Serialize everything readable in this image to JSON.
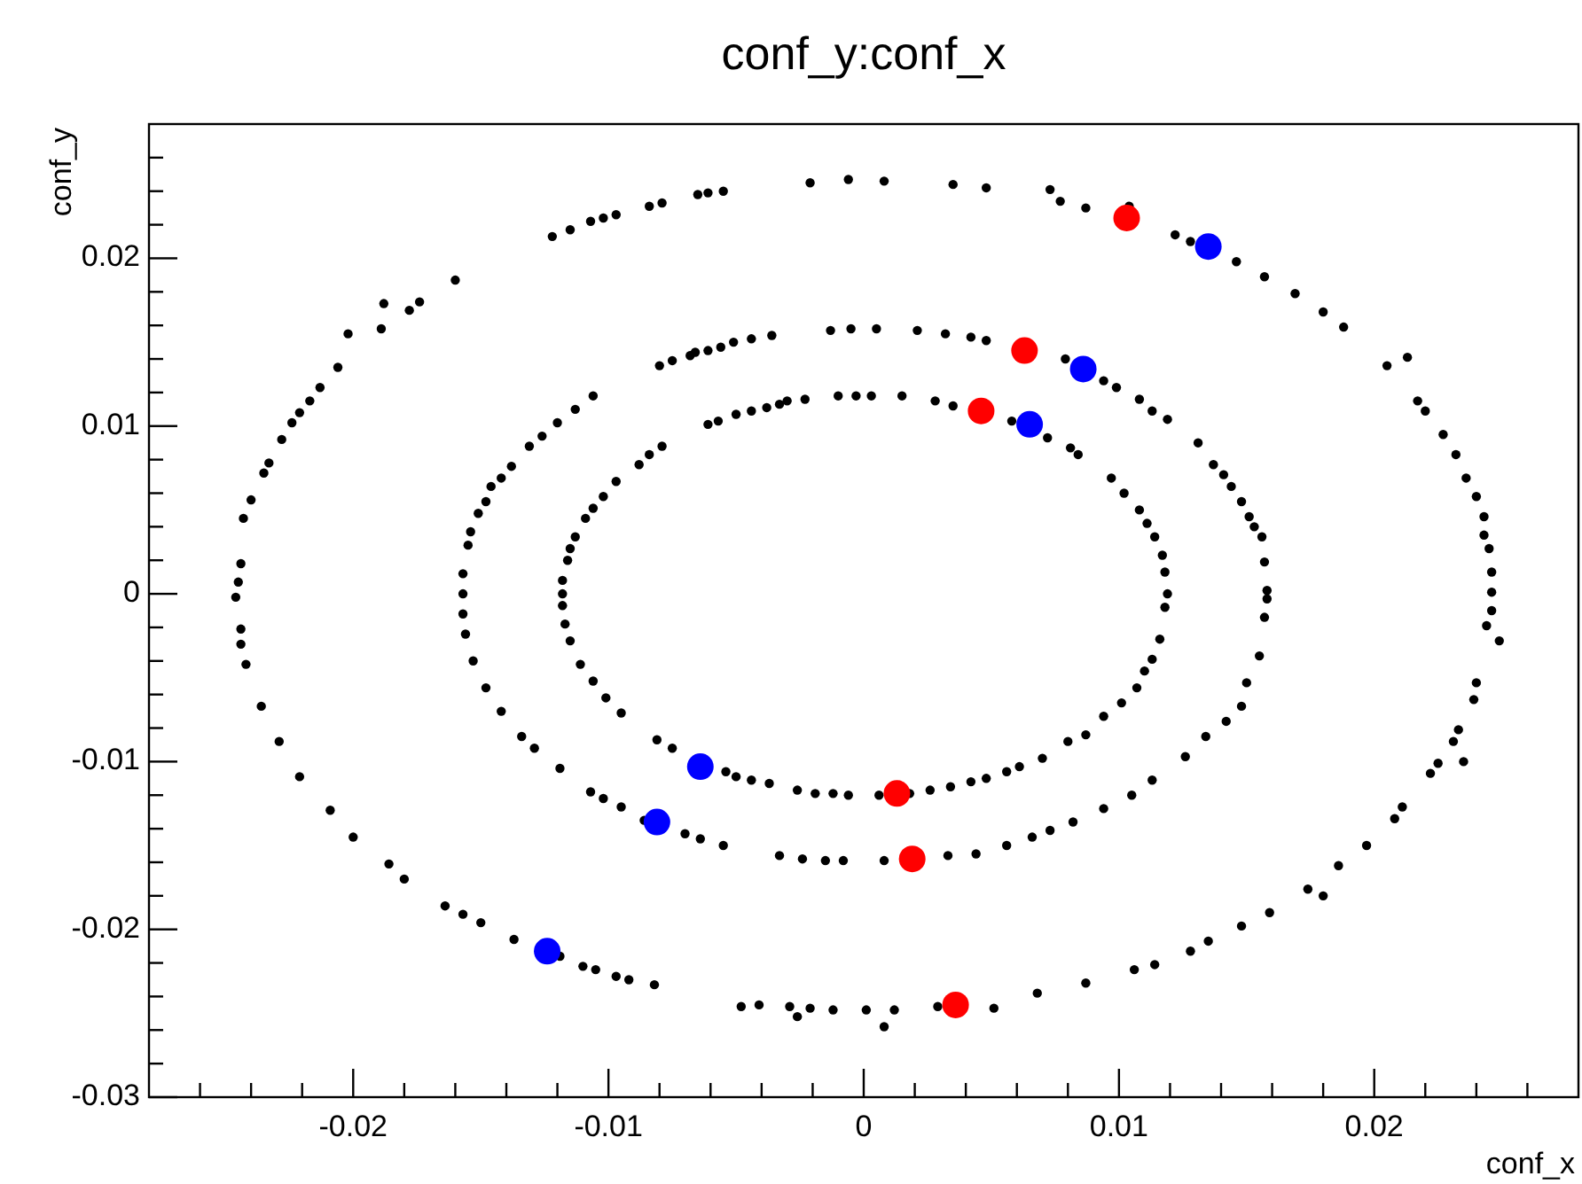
{
  "chart_data": {
    "type": "scatter",
    "title": "conf_y:conf_x",
    "xlabel": "conf_x",
    "ylabel": "conf_y",
    "xlim": [
      -0.028,
      0.028
    ],
    "ylim": [
      -0.03,
      0.028
    ],
    "xticks": [
      {
        "value": -0.026,
        "label": null
      },
      {
        "value": -0.024,
        "label": null
      },
      {
        "value": -0.022,
        "label": null
      },
      -0.02,
      {
        "value": -0.018,
        "label": null
      },
      {
        "value": -0.016,
        "label": null
      },
      {
        "value": -0.014,
        "label": null
      },
      {
        "value": -0.012,
        "label": null
      },
      -0.01,
      {
        "value": -0.008,
        "label": null
      },
      {
        "value": -0.006,
        "label": null
      },
      {
        "value": -0.004,
        "label": null
      },
      {
        "value": -0.002,
        "label": null
      },
      0,
      {
        "value": 0.002,
        "label": null
      },
      {
        "value": 0.004,
        "label": null
      },
      {
        "value": 0.006,
        "label": null
      },
      {
        "value": 0.008,
        "label": null
      },
      0.01,
      {
        "value": 0.012,
        "label": null
      },
      {
        "value": 0.014,
        "label": null
      },
      {
        "value": 0.016,
        "label": null
      },
      {
        "value": 0.018,
        "label": null
      },
      0.02,
      {
        "value": 0.022,
        "label": null
      },
      {
        "value": 0.024,
        "label": null
      },
      {
        "value": 0.026,
        "label": null
      }
    ],
    "yticks": [
      -0.03,
      {
        "value": -0.028,
        "label": null
      },
      {
        "value": -0.026,
        "label": null
      },
      {
        "value": -0.024,
        "label": null
      },
      {
        "value": -0.022,
        "label": null
      },
      -0.02,
      {
        "value": -0.018,
        "label": null
      },
      {
        "value": -0.016,
        "label": null
      },
      {
        "value": -0.014,
        "label": null
      },
      {
        "value": -0.012,
        "label": null
      },
      -0.01,
      {
        "value": -0.008,
        "label": null
      },
      {
        "value": -0.006,
        "label": null
      },
      {
        "value": -0.004,
        "label": null
      },
      {
        "value": -0.002,
        "label": null
      },
      0,
      {
        "value": 0.002,
        "label": null
      },
      {
        "value": 0.004,
        "label": null
      },
      {
        "value": 0.006,
        "label": null
      },
      {
        "value": 0.008,
        "label": null
      },
      0.01,
      {
        "value": 0.012,
        "label": null
      },
      {
        "value": 0.014,
        "label": null
      },
      {
        "value": 0.016,
        "label": null
      },
      {
        "value": 0.018,
        "label": null
      },
      0.02,
      {
        "value": 0.022,
        "label": null
      },
      {
        "value": 0.024,
        "label": null
      },
      {
        "value": 0.026,
        "label": null
      }
    ],
    "grid": false,
    "marker": "circle",
    "series": [
      {
        "color": "#000000",
        "x": [
          -0.0006,
          -0.0021,
          -0.0055,
          -0.0061,
          -0.0065,
          -0.0079,
          -0.0084,
          -0.0097,
          -0.0102,
          -0.0107,
          -0.0115,
          -0.0122,
          -0.016,
          -0.0174,
          -0.0178,
          -0.0188,
          -0.0189,
          -0.0202,
          -0.0206,
          -0.0213,
          -0.0217,
          -0.0221,
          -0.0224,
          -0.0228,
          -0.0233,
          -0.0235,
          -0.024,
          -0.0243,
          -0.0244,
          -0.0245,
          -0.0246,
          -0.0244,
          -0.0244,
          -0.0242,
          -0.0236,
          -0.0229,
          -0.0221,
          -0.0209,
          -0.02,
          -0.0186,
          -0.018,
          -0.0164,
          -0.0157,
          -0.015,
          -0.0137,
          -0.0119,
          -0.011,
          -0.0105,
          -0.0097,
          -0.0092,
          -0.0082,
          -0.0048,
          -0.0041,
          -0.0029,
          -0.0026,
          -0.0021,
          -0.0012,
          0.0001,
          0.0008,
          0.0012,
          0.0029,
          0.0051,
          0.0068,
          0.0087,
          0.0106,
          0.0114,
          0.0128,
          0.0135,
          0.0148,
          0.0159,
          0.0174,
          0.018,
          0.0186,
          0.0197,
          0.0208,
          0.0211,
          0.0222,
          0.0225,
          0.0235,
          0.0231,
          0.0233,
          0.0239,
          0.024,
          0.0249,
          0.0244,
          0.0246,
          0.0246,
          0.0246,
          0.0245,
          0.0243,
          0.0243,
          0.024,
          0.0236,
          0.0232,
          0.0227,
          0.022,
          0.0217,
          0.0213,
          0.0205,
          0.0188,
          0.018,
          0.0169,
          0.0157,
          0.0146,
          0.0128,
          0.0122,
          0.0104,
          0.0087,
          0.0077,
          0.0073,
          0.0048,
          0.0035,
          0.0008,
          -0.0005,
          -0.0013,
          -0.0036,
          -0.0044,
          -0.0051,
          -0.0056,
          -0.0061,
          -0.0066,
          -0.0068,
          -0.0075,
          -0.008,
          -0.0106,
          -0.0113,
          -0.012,
          -0.0126,
          -0.0131,
          -0.0138,
          -0.0142,
          -0.0146,
          -0.0148,
          -0.0151,
          -0.0154,
          -0.0155,
          -0.0157,
          -0.0157,
          -0.0157,
          -0.0156,
          -0.0153,
          -0.0148,
          -0.0142,
          -0.0134,
          -0.0129,
          -0.0119,
          -0.0107,
          -0.0102,
          -0.0095,
          -0.0086,
          -0.007,
          -0.0064,
          -0.0055,
          -0.0033,
          -0.0024,
          -0.0015,
          -0.0008,
          0.0008,
          0.0033,
          0.0044,
          0.0056,
          0.0066,
          0.0073,
          0.0082,
          0.0094,
          0.0105,
          0.0113,
          0.0126,
          0.0134,
          0.0142,
          0.0148,
          0.015,
          0.0155,
          0.0157,
          0.0158,
          0.0158,
          0.0157,
          0.0156,
          0.0153,
          0.0151,
          0.0148,
          0.0144,
          0.0141,
          0.0137,
          0.0131,
          0.0119,
          0.0113,
          0.0108,
          0.0099,
          0.0094,
          0.0079,
          0.0048,
          0.0042,
          0.0032,
          0.0021,
          0.0005,
          -0.0003,
          -0.001,
          -0.0023,
          -0.003,
          -0.0033,
          -0.0038,
          -0.0044,
          -0.005,
          -0.0057,
          -0.0061,
          -0.0079,
          -0.0084,
          -0.0088,
          -0.0097,
          -0.0102,
          -0.0106,
          -0.0109,
          -0.0113,
          -0.0115,
          -0.0116,
          -0.0118,
          -0.0118,
          -0.0118,
          -0.0117,
          -0.0115,
          -0.0111,
          -0.0106,
          -0.0101,
          -0.0095,
          -0.0081,
          -0.0075,
          -0.0054,
          -0.005,
          -0.0044,
          -0.0037,
          -0.0026,
          -0.0019,
          -0.0012,
          -0.0006,
          0.0006,
          0.0018,
          0.0026,
          0.0034,
          0.0042,
          0.0048,
          0.0056,
          0.0061,
          0.007,
          0.008,
          0.0087,
          0.0094,
          0.0101,
          0.0107,
          0.011,
          0.0113,
          0.0116,
          0.0118,
          0.0119,
          0.0118,
          0.0117,
          0.0114,
          0.0111,
          0.0108,
          0.0102,
          0.0097,
          0.0084,
          0.0081,
          0.0072,
          0.0058,
          0.0035,
          0.0028,
          0.0015,
          0.0003
        ],
        "values": [
          0.0247,
          0.0245,
          0.024,
          0.0239,
          0.0238,
          0.0233,
          0.0231,
          0.0226,
          0.0224,
          0.0222,
          0.0217,
          0.0213,
          0.0187,
          0.0174,
          0.0169,
          0.0173,
          0.0158,
          0.0155,
          0.0135,
          0.0123,
          0.0115,
          0.0108,
          0.0102,
          0.0092,
          0.0078,
          0.0072,
          0.0056,
          0.0045,
          0.0018,
          0.0007,
          -0.0002,
          -0.0021,
          -0.003,
          -0.0042,
          -0.0067,
          -0.0088,
          -0.0109,
          -0.0129,
          -0.0145,
          -0.0161,
          -0.017,
          -0.0186,
          -0.0191,
          -0.0196,
          -0.0206,
          -0.0216,
          -0.0222,
          -0.0224,
          -0.0228,
          -0.023,
          -0.0233,
          -0.0246,
          -0.0245,
          -0.0246,
          -0.0252,
          -0.0247,
          -0.0248,
          -0.0248,
          -0.0258,
          -0.0248,
          -0.0246,
          -0.0247,
          -0.0238,
          -0.0232,
          -0.0224,
          -0.0221,
          -0.0213,
          -0.0207,
          -0.0198,
          -0.019,
          -0.0176,
          -0.018,
          -0.0162,
          -0.015,
          -0.0134,
          -0.0127,
          -0.0107,
          -0.0101,
          -0.01,
          -0.0088,
          -0.0081,
          -0.0063,
          -0.0053,
          -0.0028,
          -0.0019,
          -0.001,
          0.0001,
          0.0013,
          0.0027,
          0.0035,
          0.0046,
          0.0058,
          0.0069,
          0.0083,
          0.0095,
          0.0109,
          0.0115,
          0.0141,
          0.0136,
          0.0159,
          0.0168,
          0.0179,
          0.0189,
          0.0198,
          0.021,
          0.0214,
          0.0231,
          0.023,
          0.0234,
          0.0241,
          0.0242,
          0.0244,
          0.0246,
          0.0158,
          0.0157,
          0.0154,
          0.0152,
          0.015,
          0.0147,
          0.0145,
          0.0144,
          0.0142,
          0.0139,
          0.0136,
          0.0118,
          0.011,
          0.0102,
          0.0094,
          0.0088,
          0.0076,
          0.0069,
          0.0064,
          0.0055,
          0.0048,
          0.0037,
          0.0029,
          0.0012,
          0,
          -0.0012,
          -0.0024,
          -0.004,
          -0.0056,
          -0.007,
          -0.0085,
          -0.0092,
          -0.0104,
          -0.0118,
          -0.0122,
          -0.0127,
          -0.0135,
          -0.0143,
          -0.0146,
          -0.015,
          -0.0156,
          -0.0158,
          -0.0159,
          -0.0159,
          -0.0159,
          -0.0156,
          -0.0155,
          -0.015,
          -0.0145,
          -0.0141,
          -0.0136,
          -0.0128,
          -0.012,
          -0.0111,
          -0.0097,
          -0.0085,
          -0.0076,
          -0.0067,
          -0.0053,
          -0.0037,
          -0.0014,
          -0.0003,
          0.0002,
          0.0019,
          0.0034,
          0.004,
          0.0046,
          0.0055,
          0.0064,
          0.0071,
          0.0077,
          0.009,
          0.0104,
          0.0109,
          0.0116,
          0.0123,
          0.0127,
          0.014,
          0.0151,
          0.0153,
          0.0155,
          0.0157,
          0.0158,
          0.0118,
          0.0118,
          0.0116,
          0.0115,
          0.0113,
          0.0111,
          0.0109,
          0.0107,
          0.0103,
          0.0101,
          0.0088,
          0.0083,
          0.0077,
          0.0067,
          0.0058,
          0.0051,
          0.0045,
          0.0034,
          0.0027,
          0.002,
          0.0008,
          0,
          -0.0007,
          -0.0018,
          -0.0028,
          -0.0042,
          -0.0052,
          -0.0062,
          -0.0071,
          -0.0087,
          -0.0092,
          -0.0106,
          -0.0109,
          -0.0111,
          -0.0113,
          -0.0117,
          -0.0119,
          -0.0119,
          -0.012,
          -0.012,
          -0.0119,
          -0.0117,
          -0.0115,
          -0.0112,
          -0.011,
          -0.0106,
          -0.0103,
          -0.0098,
          -0.0088,
          -0.0084,
          -0.0073,
          -0.0065,
          -0.0056,
          -0.0046,
          -0.0039,
          -0.0027,
          -0.0008,
          0,
          0.0013,
          0.0023,
          0.0034,
          0.0042,
          0.005,
          0.006,
          0.0069,
          0.0083,
          0.0087,
          0.0093,
          0.0103,
          0.0112,
          0.0115,
          0.0118,
          0.0118
        ]
      },
      {
        "color": "#ff0000",
        "x": [
          0.0103,
          0.0063,
          0.0046,
          0.0013,
          0.0019,
          0.0036
        ],
        "values": [
          0.0224,
          0.0145,
          0.0109,
          -0.0119,
          -0.0158,
          -0.0245
        ]
      },
      {
        "color": "#0000ff",
        "x": [
          0.0135,
          0.0086,
          0.0065,
          -0.0064,
          -0.0081,
          -0.0124
        ],
        "values": [
          0.0207,
          0.0134,
          0.0101,
          -0.0103,
          -0.0136,
          -0.0213
        ]
      }
    ]
  }
}
